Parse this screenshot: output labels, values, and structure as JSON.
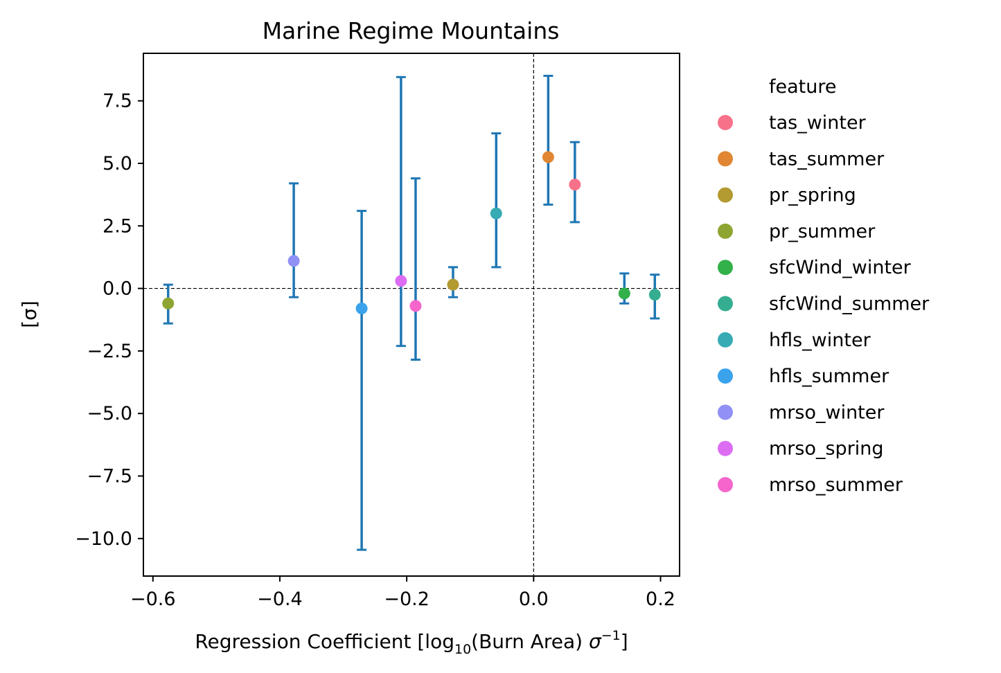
{
  "chart_data": {
    "type": "scatter",
    "title": "Marine Regime Mountains",
    "xlabel": {
      "pre": "Regression Coefficient [log",
      "sub": "10",
      "mid": "(Burn Area) ",
      "sym": "σ",
      "sup": "−1",
      "post": "]"
    },
    "ylabel": "[σ]",
    "xlim": [
      -0.615,
      0.23
    ],
    "ylim": [
      -11.5,
      9.4
    ],
    "xticks": [
      -0.6,
      -0.4,
      -0.2,
      0.0,
      0.2
    ],
    "xtick_labels": [
      "−0.6",
      "−0.4",
      "−0.2",
      "0.0",
      "0.2"
    ],
    "yticks": [
      7.5,
      5.0,
      2.5,
      0.0,
      -2.5,
      -5.0,
      -7.5,
      -10.0
    ],
    "ytick_labels": [
      "7.5",
      "5.0",
      "2.5",
      "0.0",
      "−2.5",
      "−5.0",
      "−7.5",
      "−10.0"
    ],
    "reference_lines": {
      "x": 0.0,
      "y": 0.0,
      "style": "dashed"
    },
    "errorbar_color": "#1f77b4",
    "legend": {
      "title": "feature",
      "placement": "outside-right"
    },
    "series": [
      {
        "name": "tas_winter",
        "color": "#f77189",
        "x": 0.065,
        "y": 4.15,
        "err_low": 2.65,
        "err_high": 5.85
      },
      {
        "name": "tas_summer",
        "color": "#e18632",
        "x": 0.023,
        "y": 5.25,
        "err_low": 3.35,
        "err_high": 8.5
      },
      {
        "name": "pr_spring",
        "color": "#b39a31",
        "x": -0.127,
        "y": 0.15,
        "err_low": -0.35,
        "err_high": 0.85
      },
      {
        "name": "pr_summer",
        "color": "#8ea531",
        "x": -0.576,
        "y": -0.6,
        "err_low": -1.4,
        "err_high": 0.15
      },
      {
        "name": "sfcWind_winter",
        "color": "#32b049",
        "x": 0.143,
        "y": -0.2,
        "err_low": -0.6,
        "err_high": 0.6
      },
      {
        "name": "sfcWind_summer",
        "color": "#35ad90",
        "x": 0.191,
        "y": -0.25,
        "err_low": -1.2,
        "err_high": 0.55
      },
      {
        "name": "hfls_winter",
        "color": "#37abb4",
        "x": -0.059,
        "y": 3.0,
        "err_low": 0.85,
        "err_high": 6.2
      },
      {
        "name": "hfls_summer",
        "color": "#3ba3ec",
        "x": -0.271,
        "y": -0.8,
        "err_low": -10.45,
        "err_high": 3.1
      },
      {
        "name": "mrso_winter",
        "color": "#9090f6",
        "x": -0.378,
        "y": 1.1,
        "err_low": -0.35,
        "err_high": 4.2
      },
      {
        "name": "mrso_spring",
        "color": "#dc6df3",
        "x": -0.209,
        "y": 0.3,
        "err_low": -2.3,
        "err_high": 8.45
      },
      {
        "name": "mrso_summer",
        "color": "#f565cc",
        "x": -0.186,
        "y": -0.7,
        "err_low": -2.85,
        "err_high": 4.4
      }
    ]
  }
}
